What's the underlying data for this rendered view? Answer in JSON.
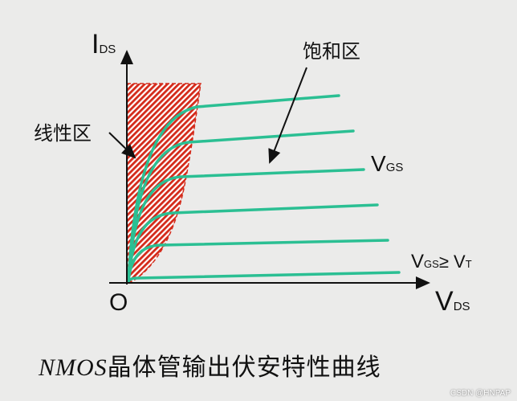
{
  "labels": {
    "y_axis_main": "I",
    "y_axis_sub": "DS",
    "x_axis_main": "V",
    "x_axis_sub": "DS",
    "origin": "O",
    "saturation_region": "饱和区",
    "linear_region": "线性区",
    "vgs_main": "V",
    "vgs_sub": "GS",
    "threshold_main": "V",
    "threshold_sub": "GS",
    "threshold_rel": "≥ V",
    "threshold_sub2": "T"
  },
  "caption": {
    "italic": "NMOS",
    "text": "晶体管输出伏安特性曲线"
  },
  "watermark": "CSDN @HNPAP",
  "colors": {
    "curve": "#2bbf93",
    "linear_region_hatch": "#d42a1a",
    "axis": "#111111"
  }
}
